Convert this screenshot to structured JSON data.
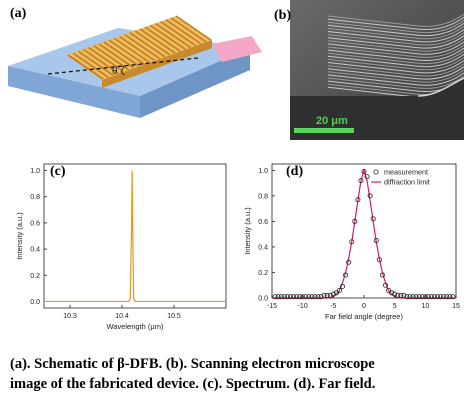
{
  "panels": {
    "a": {
      "label": "(a)"
    },
    "b": {
      "label": "(b)",
      "scale_bar": "20 μm"
    },
    "c": {
      "label": "(c)"
    },
    "d": {
      "label": "(d)"
    }
  },
  "chart_data": [
    {
      "type": "line",
      "panel": "(c)",
      "xlabel": "Wavelength (μm)",
      "ylabel": "Intensity (a.u.)",
      "xlim": [
        10.25,
        10.6
      ],
      "ylim": [
        -0.05,
        1.05
      ],
      "xticks": [
        "10.3",
        "10.4",
        "10.5"
      ],
      "yticks": [
        "0.0",
        "0.2",
        "0.4",
        "0.6",
        "0.8",
        "1.0"
      ],
      "color": "#e8961e",
      "series": [
        {
          "x": [
            10.25,
            10.38,
            10.412,
            10.416,
            10.4185,
            10.4195,
            10.4205,
            10.4225,
            10.425,
            10.44,
            10.6
          ],
          "y": [
            0.0,
            0.0,
            0.0,
            0.02,
            0.6,
            1.0,
            0.6,
            0.02,
            0.0,
            0.0,
            0.0
          ]
        }
      ]
    },
    {
      "type": "scatter",
      "panel": "(d)",
      "xlabel": "Far field angle (degree)",
      "ylabel": "Intensity (a.u.)",
      "xlim": [
        -15,
        15
      ],
      "ylim": [
        0,
        1.05
      ],
      "xticks": [
        "-15",
        "-10",
        "-5",
        "0",
        "5",
        "10",
        "15"
      ],
      "yticks": [
        "0.0",
        "0.2",
        "0.4",
        "0.6",
        "0.8",
        "1.0"
      ],
      "legend_position": "top-right",
      "series": [
        {
          "name": "measurement",
          "style": "markers",
          "x": [
            -14.5,
            -14,
            -13.5,
            -13,
            -12.5,
            -12,
            -11.5,
            -11,
            -10.5,
            -10,
            -9.5,
            -9,
            -8.5,
            -8,
            -7.5,
            -7,
            -6.5,
            -6,
            -5.5,
            -5,
            -4.5,
            -4,
            -3.5,
            -3,
            -2.5,
            -2,
            -1.5,
            -1,
            -0.5,
            0,
            0.5,
            1,
            1.5,
            2,
            2.5,
            3,
            3.5,
            4,
            4.5,
            5,
            5.5,
            6,
            6.5,
            7,
            7.5,
            8,
            8.5,
            9,
            9.5,
            10,
            10.5,
            11,
            11.5,
            12,
            12.5,
            13,
            13.5,
            14,
            14.5
          ],
          "y": [
            0.01,
            0.01,
            0.01,
            0.01,
            0.01,
            0.01,
            0.01,
            0.01,
            0.01,
            0.01,
            0.01,
            0.01,
            0.01,
            0.01,
            0.01,
            0.01,
            0.02,
            0.02,
            0.02,
            0.03,
            0.04,
            0.06,
            0.09,
            0.18,
            0.28,
            0.44,
            0.6,
            0.77,
            0.92,
            0.99,
            0.95,
            0.8,
            0.62,
            0.45,
            0.3,
            0.18,
            0.1,
            0.06,
            0.04,
            0.03,
            0.02,
            0.02,
            0.02,
            0.01,
            0.01,
            0.01,
            0.01,
            0.01,
            0.01,
            0.01,
            0.01,
            0.01,
            0.01,
            0.01,
            0.01,
            0.01,
            0.01,
            0.01,
            0.01
          ]
        },
        {
          "name": "diffraction limit",
          "style": "line",
          "color": "#d81b6e",
          "x": [
            -15,
            -6,
            -5,
            -4.5,
            -4,
            -3.5,
            -3,
            -2.5,
            -2,
            -1.5,
            -1,
            -0.5,
            0,
            0.5,
            1,
            1.5,
            2,
            2.5,
            3,
            3.5,
            4,
            4.5,
            5,
            6,
            15
          ],
          "y": [
            0,
            0,
            0.01,
            0.03,
            0.06,
            0.12,
            0.2,
            0.31,
            0.44,
            0.6,
            0.76,
            0.92,
            1.0,
            0.92,
            0.76,
            0.6,
            0.44,
            0.31,
            0.2,
            0.12,
            0.06,
            0.03,
            0.01,
            0,
            0
          ]
        }
      ]
    }
  ],
  "caption": {
    "line1": "(a). Schematic of β-DFB. (b). Scanning electron microscope",
    "line2": "image of the fabricated device. (c). Spectrum. (d). Far field."
  }
}
